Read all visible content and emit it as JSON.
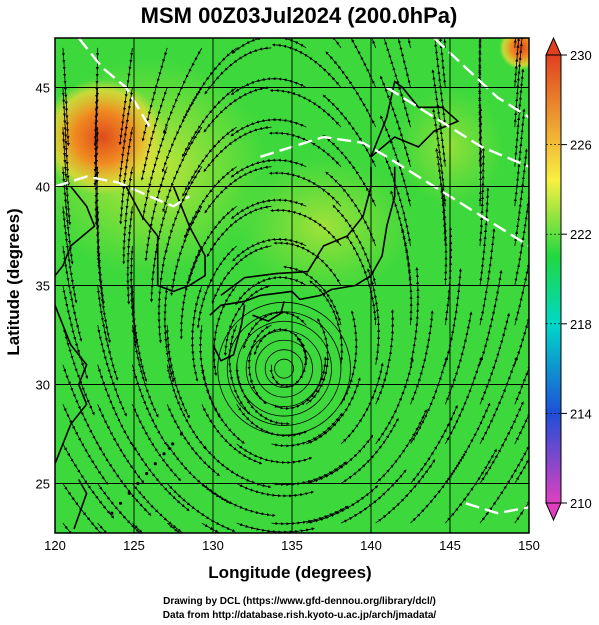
{
  "title": "MSM 00Z03Jul2024 (200.0hPa)",
  "xlabel": "Longitude (degrees)",
  "ylabel": "Latitude  (degrees)",
  "x_ticks": [
    "120",
    "125",
    "130",
    "135",
    "140",
    "145",
    "150"
  ],
  "y_ticks": [
    "25",
    "30",
    "35",
    "40",
    "45"
  ],
  "colorbar_ticks": [
    "230",
    "226",
    "222",
    "218",
    "214",
    "210"
  ],
  "credits": {
    "line1": "Drawing by DCL (https://www.gfd-dennou.org/library/dcl/)",
    "line2": "Data from http://database.rish.kyoto-u.ac.jp/arch/jmadata/"
  },
  "chart_data": {
    "type": "heatmap",
    "field": "200.0hPa streamlines with shaded scalar field",
    "xlim": [
      120,
      150
    ],
    "ylim": [
      22.5,
      47.5
    ],
    "colorbar_range": [
      210,
      230
    ],
    "colors": {
      "low": "#e040c0",
      "mid_low": "#1e4fd8",
      "mid": "#00d8c8",
      "mid_high": "#20d840",
      "high_yellow": "#f8f040",
      "high": "#e04020"
    },
    "features": {
      "vortex_center": [
        134.5,
        30.8
      ],
      "warm_region": [
        123,
        42.5
      ],
      "warm_corner": [
        149.5,
        47
      ]
    }
  }
}
